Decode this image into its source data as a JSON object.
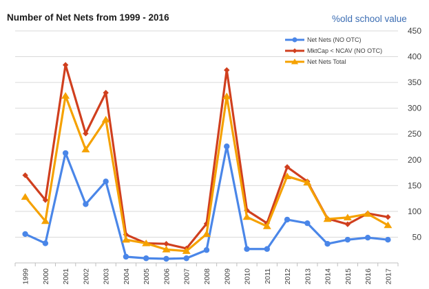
{
  "chart_data": {
    "type": "line",
    "title": "Number of Net Nets from 1999  - 2016",
    "brand": "%old school value",
    "categories": [
      "1999",
      "2000",
      "2001",
      "2002",
      "2003",
      "2004",
      "2005",
      "2006",
      "2007",
      "2008",
      "2009",
      "2010",
      "2011",
      "2012",
      "2013",
      "2014",
      "2015",
      "2016",
      "2017"
    ],
    "ylim": [
      0,
      450
    ],
    "yticks": [
      "50",
      "100",
      "150",
      "200",
      "250",
      "300",
      "350",
      "400",
      "450"
    ],
    "ytick_values": [
      50,
      100,
      150,
      200,
      250,
      300,
      350,
      400,
      450
    ],
    "grid": true,
    "legend_position": "top-right",
    "series": [
      {
        "name": "Net Nets (NO OTC)",
        "color": "#4a86e8",
        "marker": "circle",
        "values": [
          56,
          38,
          213,
          114,
          158,
          12,
          9,
          8,
          9,
          25,
          226,
          27,
          27,
          84,
          77,
          37,
          45,
          49,
          45
        ]
      },
      {
        "name": "MktCap < NCAV (NO OTC)",
        "color": "#d03f1e",
        "marker": "diamond",
        "values": [
          170,
          122,
          384,
          251,
          330,
          55,
          38,
          37,
          28,
          76,
          374,
          102,
          77,
          186,
          158,
          86,
          75,
          96,
          89
        ]
      },
      {
        "name": "Net Nets Total",
        "color": "#f5a100",
        "marker": "triangle",
        "values": [
          128,
          81,
          324,
          220,
          278,
          45,
          38,
          26,
          23,
          56,
          323,
          89,
          71,
          168,
          156,
          85,
          88,
          95,
          73
        ]
      }
    ]
  }
}
